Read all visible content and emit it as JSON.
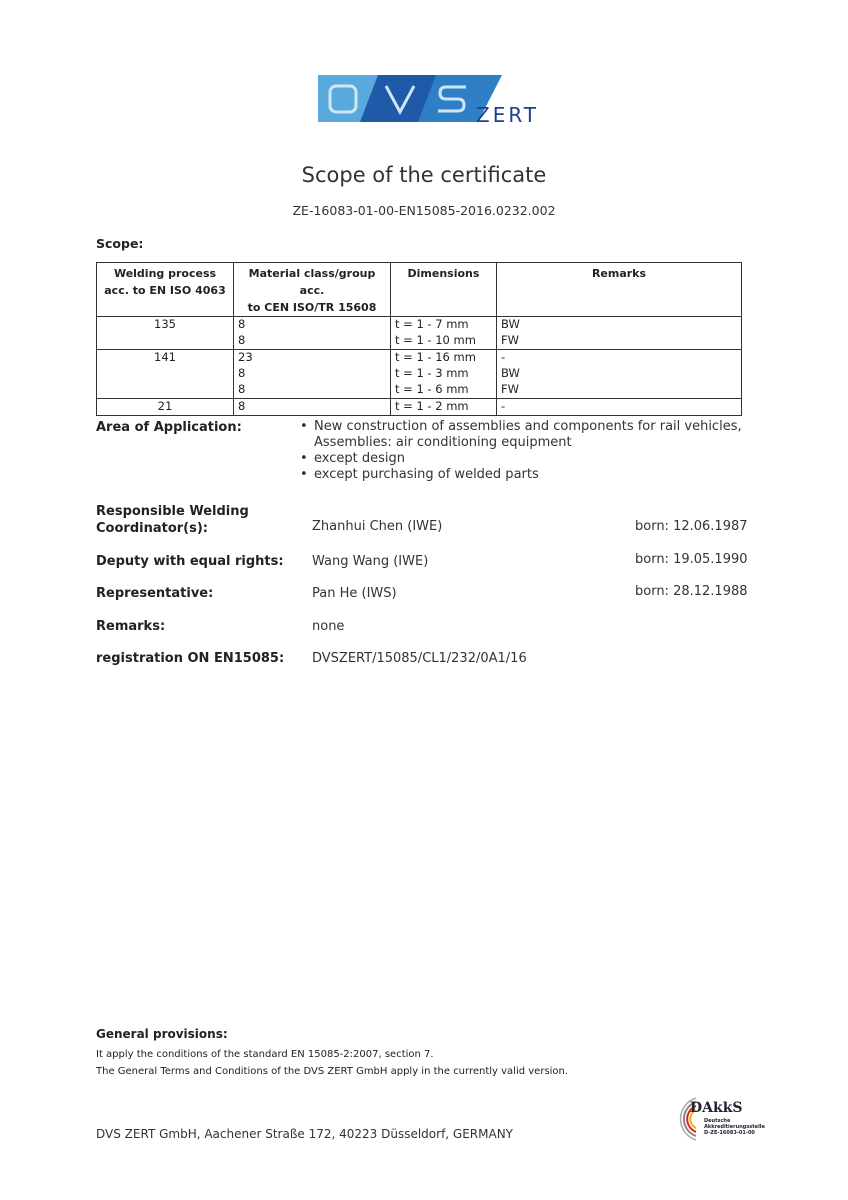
{
  "logo": {
    "brand": "DVS",
    "sub": "ZERT",
    "colors": {
      "light": "#5aa9dd",
      "dark": "#1e5aa8",
      "text": "#1f3f8f"
    }
  },
  "title": "Scope of the certificate",
  "certificate_number": "ZE-16083-01-00-EN15085-2016.0232.002",
  "scope_label": "Scope:",
  "table": {
    "headers": [
      [
        "Welding process",
        "acc. to EN ISO 4063"
      ],
      [
        "Material class/group acc.",
        "to CEN ISO/TR 15608"
      ],
      [
        "Dimensions"
      ],
      [
        "Remarks"
      ]
    ],
    "rows": [
      {
        "process": "135",
        "material": "8",
        "dimensions": "t = 1 - 7 mm",
        "remarks": "BW"
      },
      {
        "process": "",
        "material": "8",
        "dimensions": "t = 1 - 10 mm",
        "remarks": "FW"
      },
      {
        "process": "141",
        "material": "23",
        "dimensions": "t = 1 - 16 mm",
        "remarks": "-"
      },
      {
        "process": "",
        "material": "8",
        "dimensions": "t = 1 - 3 mm",
        "remarks": "BW"
      },
      {
        "process": "",
        "material": "8",
        "dimensions": "t = 1 - 6 mm",
        "remarks": "FW"
      },
      {
        "process": "21",
        "material": "8",
        "dimensions": "t = 1 - 2 mm",
        "remarks": "-"
      }
    ]
  },
  "area": {
    "label": "Area of Application:",
    "items": [
      "New construction of assemblies and components for rail vehicles, Assemblies: air conditioning equipment",
      "except design",
      "except purchasing of welded parts"
    ]
  },
  "people": [
    {
      "label": "Responsible Welding Coordinator(s):",
      "name": "Zhanhui Chen (IWE)",
      "born": "born: 12.06.1987"
    },
    {
      "label": "Deputy with equal rights:",
      "name": "Wang Wang (IWE)",
      "born": "born: 19.05.1990"
    },
    {
      "label": "Representative:",
      "name": "Pan He (IWS)",
      "born": "born: 28.12.1988"
    }
  ],
  "remarks": {
    "label": "Remarks:",
    "value": "none"
  },
  "registration": {
    "label": "registration ON EN15085:",
    "value": "DVSZERT/15085/CL1/232/0A1/16"
  },
  "general": {
    "title": "General provisions:",
    "lines": [
      "It apply the conditions of the standard EN 15085-2:2007, section 7.",
      "The General Terms and Conditions of the DVS ZERT GmbH apply in the currently valid version."
    ]
  },
  "footer": "DVS ZERT GmbH, Aachener Straße 172, 40223 Düsseldorf, GERMANY",
  "dakks": {
    "name": "DAkkS",
    "line1": "Deutsche",
    "line2": "Akkreditierungsstelle",
    "line3": "D-ZE-16083-01-00"
  }
}
